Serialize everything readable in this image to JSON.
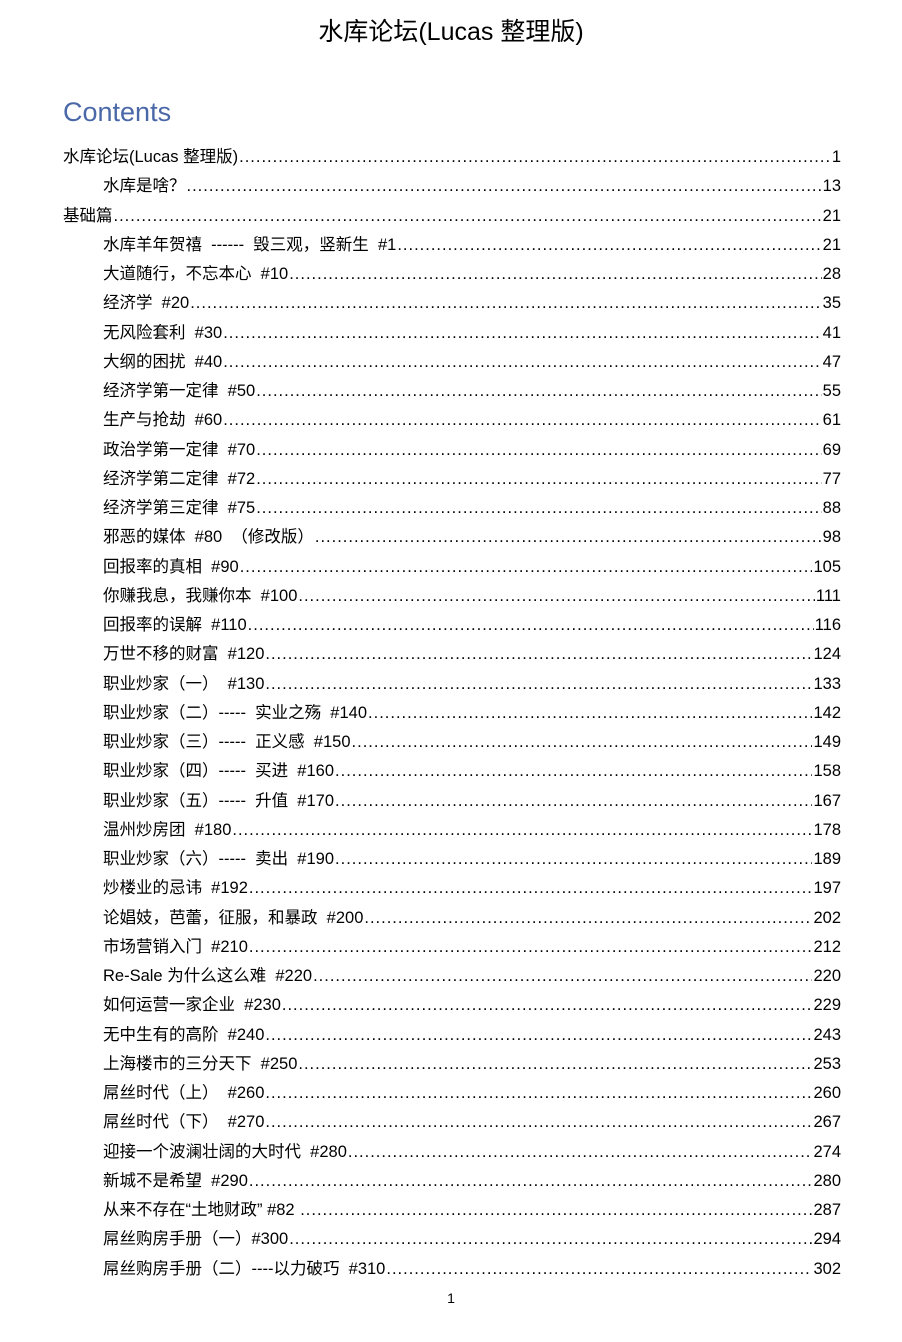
{
  "document": {
    "title": "水库论坛(Lucas 整理版)",
    "contents_heading": "Contents",
    "heading_color": "#4a68a8",
    "page_number": "1",
    "toc": [
      {
        "level": 1,
        "title": "水库论坛(Lucas 整理版)",
        "page": "1"
      },
      {
        "level": 2,
        "title": "水库是啥？",
        "page": "13"
      },
      {
        "level": 1,
        "title": "基础篇",
        "page": "21"
      },
      {
        "level": 2,
        "title": "水库羊年贺禧  ------  毁三观，竖新生  #1",
        "page": "21"
      },
      {
        "level": 2,
        "title": "大道随行，不忘本心  #10",
        "page": "28"
      },
      {
        "level": 2,
        "title": "经济学  #20",
        "page": "35"
      },
      {
        "level": 2,
        "title": "无风险套利  #30",
        "page": "41"
      },
      {
        "level": 2,
        "title": "大纲的困扰  #40",
        "page": "47"
      },
      {
        "level": 2,
        "title": "经济学第一定律  #50",
        "page": "55"
      },
      {
        "level": 2,
        "title": "生产与抢劫  #60",
        "page": "61"
      },
      {
        "level": 2,
        "title": "政治学第一定律  #70",
        "page": "69"
      },
      {
        "level": 2,
        "title": "经济学第二定律  #72",
        "page": "77"
      },
      {
        "level": 2,
        "title": "经济学第三定律  #75",
        "page": "88"
      },
      {
        "level": 2,
        "title": "邪恶的媒体  #80  （修改版）",
        "page": "98"
      },
      {
        "level": 2,
        "title": "回报率的真相  #90",
        "page": "105"
      },
      {
        "level": 2,
        "title": "你赚我息，我赚你本  #100",
        "page": "111"
      },
      {
        "level": 2,
        "title": "回报率的误解  #110",
        "page": "116"
      },
      {
        "level": 2,
        "title": "万世不移的财富  #120",
        "page": "124"
      },
      {
        "level": 2,
        "title": "职业炒家（一）  #130",
        "page": "133"
      },
      {
        "level": 2,
        "title": "职业炒家（二）-----  实业之殇  #140",
        "page": "142"
      },
      {
        "level": 2,
        "title": "职业炒家（三）-----  正义感  #150",
        "page": "149"
      },
      {
        "level": 2,
        "title": "职业炒家（四）-----  买进  #160",
        "page": "158"
      },
      {
        "level": 2,
        "title": "职业炒家（五）-----  升值  #170",
        "page": "167"
      },
      {
        "level": 2,
        "title": "温州炒房团  #180",
        "page": "178"
      },
      {
        "level": 2,
        "title": "职业炒家（六）-----  卖出  #190",
        "page": "189"
      },
      {
        "level": 2,
        "title": "炒楼业的忌讳  #192",
        "page": "197"
      },
      {
        "level": 2,
        "title": "论娼妓，芭蕾，征服，和暴政  #200",
        "page": "202"
      },
      {
        "level": 2,
        "title": "市场营销入门  #210",
        "page": "212"
      },
      {
        "level": 2,
        "title": "Re-Sale 为什么这么难  #220",
        "page": "220"
      },
      {
        "level": 2,
        "title": "如何运营一家企业  #230",
        "page": "229"
      },
      {
        "level": 2,
        "title": "无中生有的高阶  #240",
        "page": "243"
      },
      {
        "level": 2,
        "title": "上海楼市的三分天下  #250",
        "page": "253"
      },
      {
        "level": 2,
        "title": "屌丝时代（上）  #260",
        "page": "260"
      },
      {
        "level": 2,
        "title": "屌丝时代（下）  #270",
        "page": "267"
      },
      {
        "level": 2,
        "title": "迎接一个波澜壮阔的大时代  #280",
        "page": "274"
      },
      {
        "level": 2,
        "title": "新城不是希望  #290",
        "page": "280"
      },
      {
        "level": 2,
        "title": "从来不存在“土地财政” #82 ",
        "page": "287"
      },
      {
        "level": 2,
        "title": "屌丝购房手册（一）#300",
        "page": "294"
      },
      {
        "level": 2,
        "title": "屌丝购房手册（二）----以力破巧  #310",
        "page": "302"
      }
    ]
  }
}
